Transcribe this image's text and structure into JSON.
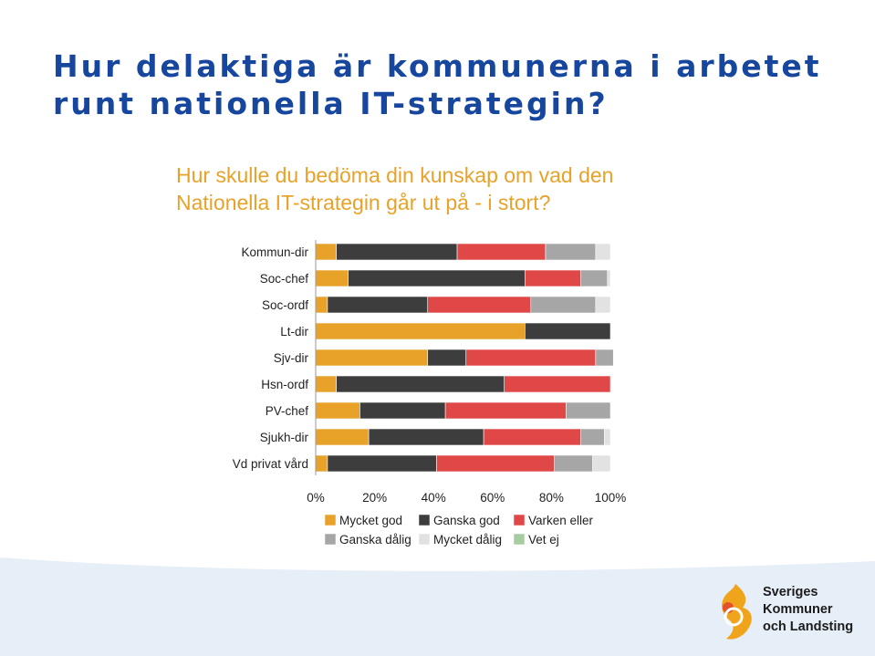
{
  "slide": {
    "title_lines": [
      "Hur delaktiga är kommunerna i arbetet",
      "runt nationella IT-strategin?"
    ],
    "question_lines": [
      "Hur skulle du bedöma din kunskap om vad den",
      "Nationella IT-strategin går ut på - i stort?"
    ],
    "title_color": "#17469e",
    "question_color": "#e8a22a"
  },
  "chart_data": {
    "type": "bar",
    "orientation": "horizontal",
    "stacked": true,
    "categories": [
      "Kommun-dir",
      "Soc-chef",
      "Soc-ordf",
      "Lt-dir",
      "Sjv-dir",
      "Hsn-ordf",
      "PV-chef",
      "Sjukh-dir",
      "Vd privat vård"
    ],
    "series": [
      {
        "name": "Mycket god",
        "color": "#e8a22a",
        "values": [
          7,
          11,
          4,
          71,
          38,
          7,
          15,
          18,
          4
        ]
      },
      {
        "name": "Ganska god",
        "color": "#3d3d3d",
        "values": [
          41,
          60,
          34,
          29,
          13,
          57,
          29,
          39,
          37
        ]
      },
      {
        "name": "Varken eller",
        "color": "#e04848",
        "values": [
          30,
          19,
          35,
          0,
          44,
          36,
          41,
          33,
          40
        ]
      },
      {
        "name": "Ganska dålig",
        "color": "#a6a6a6",
        "values": [
          17,
          9,
          22,
          0,
          6,
          0,
          15,
          8,
          13
        ]
      },
      {
        "name": "Mycket dålig",
        "color": "#e2e2e2",
        "values": [
          5,
          1,
          5,
          0,
          0,
          0,
          0,
          2,
          6
        ]
      },
      {
        "name": "Vet ej",
        "color": "#a8cca2",
        "values": [
          0,
          0,
          0,
          0,
          0,
          0,
          0,
          0,
          0
        ]
      }
    ],
    "xticks": [
      "0%",
      "20%",
      "40%",
      "60%",
      "80%",
      "100%"
    ],
    "xlim": [
      0,
      100
    ],
    "legend_position": "bottom"
  },
  "logo": {
    "text_lines": [
      "Sveriges",
      "Kommuner",
      "och Landsting"
    ],
    "colors": [
      "#f0a41c",
      "#e4502a"
    ]
  },
  "band_color": "#e6eef8"
}
